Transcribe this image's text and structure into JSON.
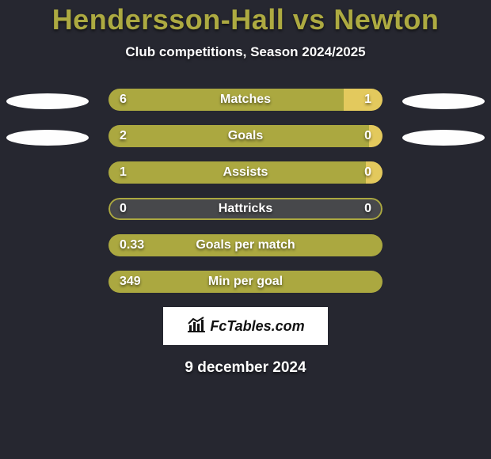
{
  "title_color": "#adaa41",
  "background_color": "#262730",
  "colors": {
    "left": "#aba840",
    "center": "#aba840",
    "right": "#e3c95d",
    "empty": "#47484b"
  },
  "header": {
    "player_a": "Hendersson-Hall",
    "vs": " vs ",
    "player_b": "Newton",
    "subtitle": "Club competitions, Season 2024/2025"
  },
  "rows": [
    {
      "label": "Matches",
      "left": "6",
      "right": "1",
      "left_pct": 85.7,
      "right_pct": 14.3,
      "show_ellipses": true
    },
    {
      "label": "Goals",
      "left": "2",
      "right": "0",
      "left_pct": 95,
      "right_pct": 5,
      "show_ellipses": true
    },
    {
      "label": "Assists",
      "left": "1",
      "right": "0",
      "left_pct": 94,
      "right_pct": 6,
      "show_ellipses": false
    },
    {
      "label": "Hattricks",
      "left": "0",
      "right": "0",
      "left_pct": 0,
      "right_pct": 0,
      "show_ellipses": false
    },
    {
      "label": "Goals per match",
      "left": "0.33",
      "right": "",
      "left_pct": 100,
      "right_pct": 0,
      "show_ellipses": false
    },
    {
      "label": "Min per goal",
      "left": "349",
      "right": "",
      "left_pct": 100,
      "right_pct": 0,
      "show_ellipses": false
    }
  ],
  "logo": {
    "brand": "FcTables.com"
  },
  "date": "9 december 2024"
}
